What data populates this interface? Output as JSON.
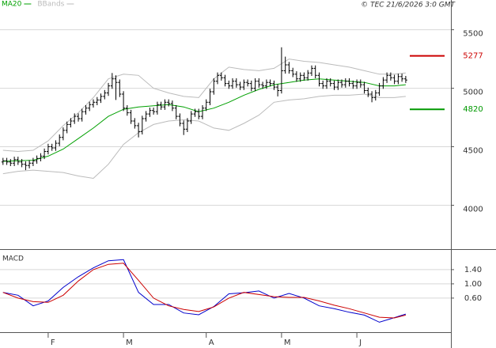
{
  "chart_data": [
    {
      "type": "ohlc",
      "credit": "© TEC 21/6/2026 3:0 GMT",
      "xlim": [
        -0.8,
        119
      ],
      "ylim": [
        3625,
        5700
      ],
      "yticks": [
        4000,
        4500,
        5000,
        5500
      ],
      "xticks": [
        {
          "value": 12,
          "label": "F"
        },
        {
          "value": 32,
          "label": "M"
        },
        {
          "value": 54,
          "label": "A"
        },
        {
          "value": 74,
          "label": "M"
        },
        {
          "value": 94,
          "label": "J"
        }
      ],
      "grid": true,
      "bar_color": "#000000",
      "open": [
        4370,
        4380,
        4370,
        4360,
        4390,
        4370,
        4350,
        4340,
        4360,
        4380,
        4400,
        4420,
        4460,
        4500,
        4490,
        4530,
        4580,
        4640,
        4690,
        4720,
        4760,
        4740,
        4800,
        4830,
        4860,
        4880,
        4900,
        4930,
        4960,
        5020,
        5080,
        5050,
        4950,
        4830,
        4790,
        4720,
        4680,
        4630,
        4740,
        4780,
        4810,
        4800,
        4860,
        4840,
        4880,
        4870,
        4830,
        4760,
        4700,
        4650,
        4720,
        4780,
        4800,
        4760,
        4830,
        4880,
        4970,
        5060,
        5110,
        5090,
        5040,
        5020,
        5060,
        5030,
        5010,
        5050,
        5040,
        5000,
        5060,
        5030,
        5020,
        5050,
        5040,
        5010,
        4980,
        5150,
        5200,
        5150,
        5120,
        5080,
        5110,
        5090,
        5130,
        5170,
        5110,
        5040,
        5020,
        5060,
        5040,
        5010,
        5050,
        5030,
        5060,
        5040,
        5020,
        5050,
        5030,
        4980,
        4950,
        4920,
        4960,
        5020,
        5070,
        5110,
        5090,
        5060,
        5100,
        5080
      ],
      "high": [
        4405,
        4405,
        4395,
        4415,
        4415,
        4395,
        4375,
        4385,
        4405,
        4425,
        4445,
        4485,
        4525,
        4525,
        4555,
        4605,
        4665,
        4715,
        4745,
        4785,
        4785,
        4825,
        4855,
        4885,
        4905,
        4925,
        4955,
        4985,
        5045,
        5130,
        5110,
        5075,
        4975,
        4855,
        4815,
        4745,
        4705,
        4765,
        4805,
        4835,
        4835,
        4885,
        4885,
        4905,
        4905,
        4895,
        4855,
        4785,
        4725,
        4745,
        4805,
        4825,
        4825,
        4855,
        4905,
        4995,
        5085,
        5135,
        5135,
        5115,
        5065,
        5085,
        5085,
        5055,
        5075,
        5075,
        5065,
        5085,
        5085,
        5055,
        5075,
        5075,
        5065,
        5035,
        5350,
        5270,
        5225,
        5175,
        5145,
        5135,
        5135,
        5155,
        5195,
        5195,
        5135,
        5065,
        5085,
        5085,
        5065,
        5075,
        5075,
        5085,
        5085,
        5065,
        5075,
        5075,
        5055,
        5005,
        4975,
        4985,
        5045,
        5095,
        5135,
        5135,
        5115,
        5125,
        5125,
        5105
      ],
      "low": [
        4345,
        4345,
        4335,
        4335,
        4345,
        4325,
        4300,
        4315,
        4335,
        4355,
        4375,
        4395,
        4435,
        4465,
        4465,
        4505,
        4555,
        4615,
        4665,
        4695,
        4715,
        4715,
        4775,
        4805,
        4835,
        4855,
        4875,
        4905,
        4935,
        4995,
        4900,
        4925,
        4805,
        4765,
        4695,
        4655,
        4580,
        4605,
        4715,
        4755,
        4775,
        4775,
        4815,
        4815,
        4845,
        4805,
        4735,
        4675,
        4600,
        4625,
        4695,
        4755,
        4735,
        4735,
        4805,
        4855,
        4945,
        5035,
        5065,
        5015,
        4995,
        4995,
        5005,
        4985,
        4985,
        5015,
        4975,
        4975,
        5005,
        4995,
        4995,
        5015,
        4985,
        4930,
        4955,
        5125,
        5125,
        5095,
        5055,
        5055,
        5065,
        5065,
        5105,
        5085,
        5015,
        4995,
        4995,
        5015,
        4985,
        4985,
        5005,
        5005,
        5015,
        4995,
        4995,
        5005,
        4955,
        4925,
        4880,
        4895,
        4935,
        4995,
        5045,
        5065,
        5035,
        5035,
        5055,
        5045
      ],
      "close": [
        4380,
        4370,
        4360,
        4390,
        4370,
        4350,
        4340,
        4360,
        4380,
        4400,
        4420,
        4460,
        4500,
        4490,
        4530,
        4580,
        4640,
        4690,
        4720,
        4760,
        4740,
        4800,
        4830,
        4860,
        4880,
        4900,
        4930,
        4960,
        5020,
        5080,
        5050,
        4950,
        4830,
        4790,
        4720,
        4680,
        4630,
        4740,
        4780,
        4810,
        4800,
        4860,
        4840,
        4880,
        4870,
        4830,
        4760,
        4700,
        4650,
        4720,
        4780,
        4800,
        4760,
        4830,
        4880,
        4970,
        5060,
        5110,
        5090,
        5040,
        5020,
        5060,
        5030,
        5010,
        5050,
        5040,
        5000,
        5060,
        5030,
        5020,
        5050,
        5040,
        5010,
        4980,
        5150,
        5200,
        5150,
        5120,
        5080,
        5110,
        5090,
        5130,
        5170,
        5110,
        5040,
        5020,
        5060,
        5040,
        5010,
        5050,
        5030,
        5060,
        5040,
        5020,
        5050,
        5030,
        4980,
        4950,
        4920,
        4960,
        5020,
        5070,
        5110,
        5090,
        5060,
        5100,
        5080,
        5070
      ],
      "series": [
        {
          "name": "MA20",
          "color": "#00a000",
          "x": [
            0,
            4,
            8,
            12,
            16,
            20,
            24,
            28,
            32,
            36,
            40,
            44,
            48,
            52,
            56,
            60,
            64,
            68,
            72,
            76,
            80,
            84,
            88,
            92,
            96,
            100,
            104,
            107
          ],
          "values": [
            4375,
            4380,
            4385,
            4420,
            4480,
            4570,
            4660,
            4760,
            4820,
            4840,
            4850,
            4860,
            4840,
            4800,
            4830,
            4880,
            4940,
            4990,
            5030,
            5050,
            5070,
            5080,
            5070,
            5060,
            5050,
            5020,
            5020,
            5030
          ]
        },
        {
          "name": "BBands",
          "color": "#bbbbbb",
          "x": [
            0,
            4,
            8,
            12,
            16,
            20,
            24,
            28,
            32,
            36,
            40,
            44,
            48,
            52,
            56,
            60,
            64,
            68,
            72,
            76,
            80,
            84,
            88,
            92,
            96,
            100,
            104,
            107
          ],
          "upper": [
            4470,
            4460,
            4470,
            4550,
            4680,
            4790,
            4920,
            5080,
            5120,
            5110,
            5000,
            4960,
            4930,
            4920,
            5080,
            5180,
            5160,
            5150,
            5170,
            5250,
            5230,
            5220,
            5200,
            5180,
            5150,
            5120,
            5120,
            5130
          ],
          "lower": [
            4270,
            4290,
            4300,
            4290,
            4280,
            4250,
            4230,
            4350,
            4520,
            4620,
            4690,
            4720,
            4730,
            4720,
            4660,
            4640,
            4700,
            4770,
            4880,
            4900,
            4910,
            4930,
            4940,
            4940,
            4950,
            4920,
            4920,
            4930
          ]
        }
      ],
      "levels": [
        {
          "value": 5277,
          "color": "#cc0000"
        },
        {
          "value": 4820,
          "color": "#009900"
        }
      ]
    },
    {
      "type": "line",
      "title": "MACD",
      "xlim": [
        -0.8,
        119
      ],
      "ylim": [
        -0.36,
        1.91
      ],
      "yticks": [
        {
          "value": 0.6,
          "label": "0.60"
        },
        {
          "value": 1.0,
          "label": "1.00"
        },
        {
          "value": 1.4,
          "label": "1.40"
        }
      ],
      "grid": true,
      "series": [
        {
          "color": "#0000cc",
          "x": [
            0,
            4,
            8,
            12,
            16,
            20,
            24,
            28,
            32,
            36,
            40,
            44,
            48,
            52,
            56,
            60,
            64,
            68,
            72,
            76,
            80,
            84,
            88,
            92,
            96,
            100,
            104,
            107
          ],
          "values": [
            0.76,
            0.68,
            0.38,
            0.52,
            0.9,
            1.2,
            1.45,
            1.65,
            1.68,
            0.76,
            0.42,
            0.42,
            0.18,
            0.13,
            0.36,
            0.72,
            0.75,
            0.8,
            0.6,
            0.73,
            0.6,
            0.38,
            0.3,
            0.2,
            0.12,
            -0.08,
            0.05,
            0.15
          ]
        },
        {
          "color": "#cc0000",
          "x": [
            0,
            4,
            8,
            12,
            16,
            20,
            24,
            28,
            32,
            36,
            40,
            44,
            48,
            52,
            56,
            60,
            64,
            68,
            72,
            76,
            80,
            84,
            88,
            92,
            96,
            100,
            104,
            107
          ],
          "values": [
            0.76,
            0.6,
            0.5,
            0.48,
            0.68,
            1.08,
            1.4,
            1.55,
            1.58,
            1.1,
            0.6,
            0.38,
            0.28,
            0.22,
            0.35,
            0.6,
            0.76,
            0.7,
            0.64,
            0.62,
            0.62,
            0.52,
            0.4,
            0.3,
            0.18,
            0.06,
            0.04,
            0.12
          ]
        }
      ]
    }
  ]
}
